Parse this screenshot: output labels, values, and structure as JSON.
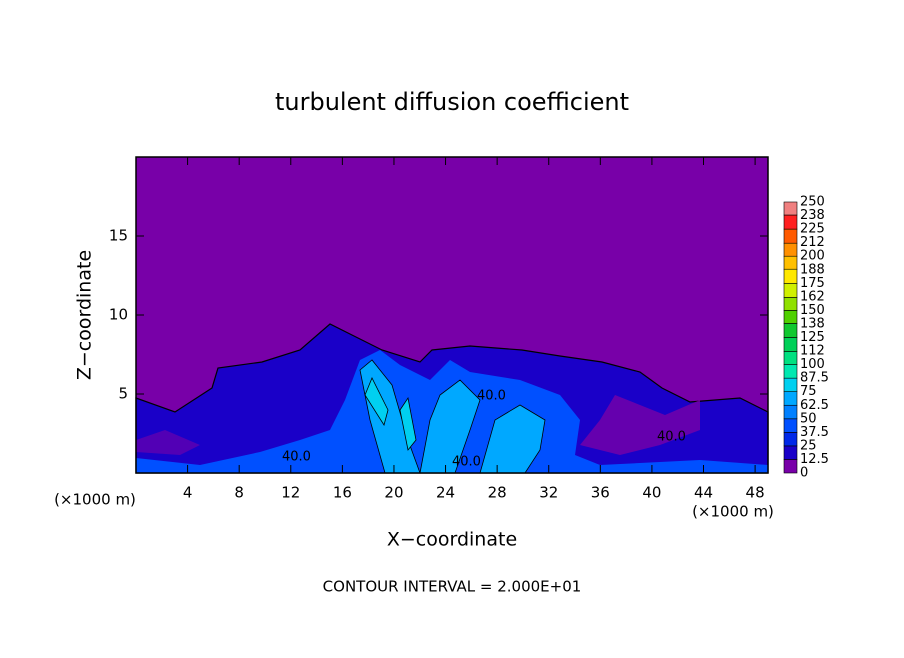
{
  "chart_data": {
    "type": "contour",
    "title": "turbulent diffusion coefficient",
    "x_label": "X−coordinate",
    "y_label": "Z−coordinate",
    "x_unit": "(×1000 m)",
    "y_unit": "(×1000 m)",
    "xlim": [
      0,
      49
    ],
    "xticks": [
      4,
      8,
      12,
      16,
      20,
      24,
      28,
      32,
      36,
      40,
      44,
      48
    ],
    "ylim": [
      0,
      20
    ],
    "yticks": [
      5,
      10,
      15
    ],
    "contour_labels": [
      "40.0",
      "40.0",
      "40.0",
      "40.0"
    ],
    "footer": "CONTOUR INTERVAL = 2.000E+01",
    "colorbar": {
      "levels": [
        0,
        12.5,
        25,
        37.5,
        50,
        62.5,
        75,
        87.5,
        100,
        112,
        125,
        138,
        150,
        162,
        175,
        188,
        200,
        212,
        225,
        238,
        250
      ],
      "colors": [
        "#7800a8",
        "#1a00c8",
        "#0028e8",
        "#0050ff",
        "#0080ff",
        "#00a8ff",
        "#00d0f0",
        "#00e8b0",
        "#00e080",
        "#00d058",
        "#10c830",
        "#50d000",
        "#90e000",
        "#d0f000",
        "#ffe800",
        "#ffc000",
        "#ff9000",
        "#ff5a00",
        "#ff2020",
        "#f08080"
      ]
    }
  }
}
